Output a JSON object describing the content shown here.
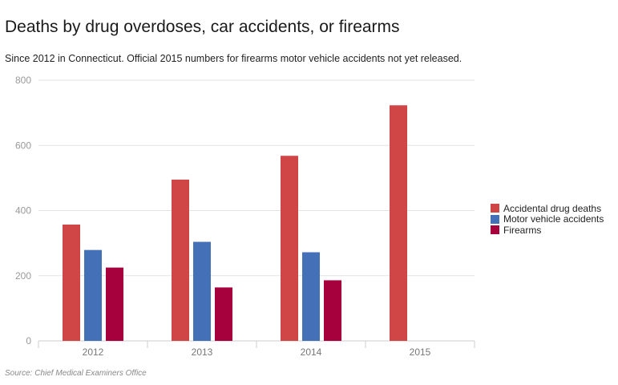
{
  "title": "Deaths by drug overdoses, car accidents, or firearms",
  "subtitle": "Since 2012 in Connecticut. Official 2015 numbers for firearms motor vehicle accidents not yet released.",
  "source": "Source: Chief Medical Examiners Office",
  "chart_data": {
    "type": "bar",
    "categories": [
      "2012",
      "2013",
      "2014",
      "2015"
    ],
    "series": [
      {
        "name": "Accidental drug deaths",
        "color": "#d04545",
        "values": [
          357,
          495,
          568,
          723
        ]
      },
      {
        "name": "Motor vehicle accidents",
        "color": "#4470b8",
        "values": [
          279,
          304,
          272,
          null
        ]
      },
      {
        "name": "Firearms",
        "color": "#a6003d",
        "values": [
          225,
          164,
          186,
          null
        ]
      }
    ],
    "ylim": [
      0,
      800
    ],
    "yticks": [
      0,
      200,
      400,
      600,
      800
    ],
    "grid": true,
    "legend_position": "right"
  }
}
